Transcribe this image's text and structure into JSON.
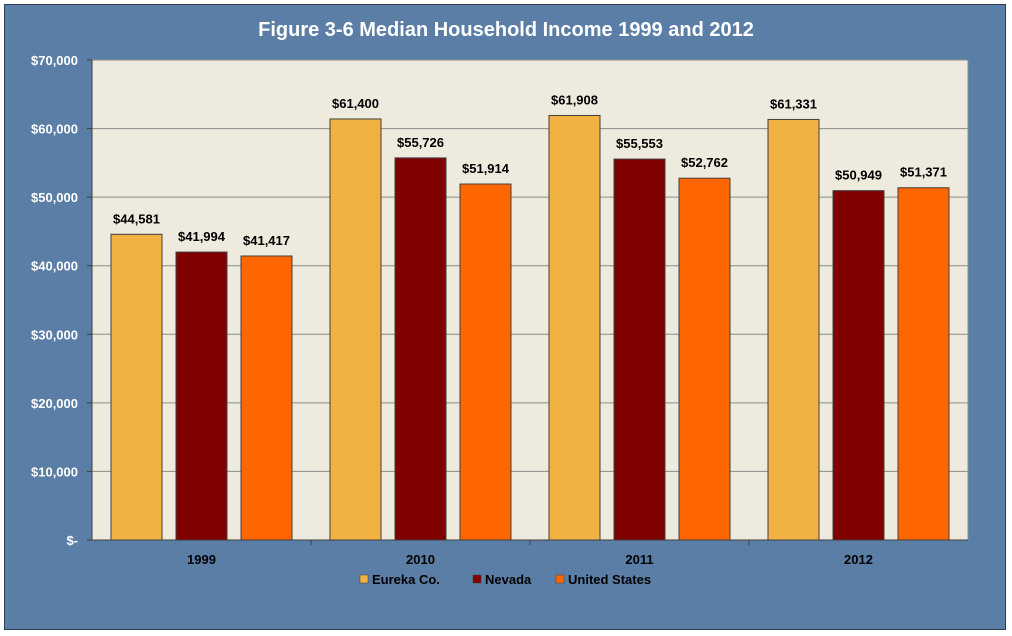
{
  "chart_data": {
    "type": "bar",
    "title": "Figure 3-6 Median Household Income 1999 and 2012",
    "categories": [
      "1999",
      "2010",
      "2011",
      "2012"
    ],
    "series": [
      {
        "name": "Eureka Co.",
        "color": "#f2b143",
        "values": [
          44581,
          61400,
          61908,
          61331
        ],
        "labels": [
          "$44,581",
          "$61,400",
          "$61,908",
          "$61,331"
        ]
      },
      {
        "name": "Nevada",
        "color": "#800000",
        "values": [
          41994,
          55726,
          55553,
          50949
        ],
        "labels": [
          "$41,994",
          "$55,726",
          "$55,553",
          "$50,949"
        ]
      },
      {
        "name": "United States",
        "color": "#ff6600",
        "values": [
          41417,
          51914,
          52762,
          51371
        ],
        "labels": [
          "$41,417",
          "$51,914",
          "$52,762",
          "$51,371"
        ]
      }
    ],
    "ylim": [
      0,
      70000
    ],
    "yticks": [
      0,
      10000,
      20000,
      30000,
      40000,
      50000,
      60000,
      70000
    ],
    "ytick_labels": [
      "$-",
      "$10,000",
      "$20,000",
      "$30,000",
      "$40,000",
      "$50,000",
      "$60,000",
      "$70,000"
    ],
    "grid": true,
    "legend_position": "bottom",
    "plot_background": "#eeeadd",
    "frame_background": "#5b7ea6"
  }
}
